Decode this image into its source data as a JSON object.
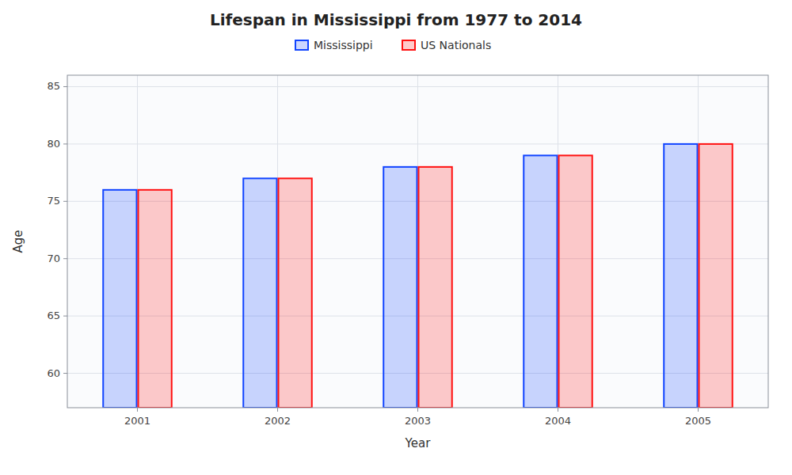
{
  "chart_data": {
    "type": "bar",
    "title": "Lifespan in Mississippi from 1977 to 2014",
    "xlabel": "Year",
    "ylabel": "Age",
    "categories": [
      "2001",
      "2002",
      "2003",
      "2004",
      "2005"
    ],
    "series": [
      {
        "name": "Mississippi",
        "color": "#1144ff",
        "values": [
          76.0,
          77.0,
          78.0,
          79.0,
          80.0
        ]
      },
      {
        "name": "US Nationals",
        "color": "#ff1111",
        "values": [
          76.0,
          77.0,
          78.0,
          79.0,
          80.0
        ]
      }
    ],
    "ylim": [
      57,
      86
    ],
    "yticks": [
      60,
      65,
      70,
      75,
      80,
      85
    ],
    "grid": true,
    "legend": "top"
  }
}
